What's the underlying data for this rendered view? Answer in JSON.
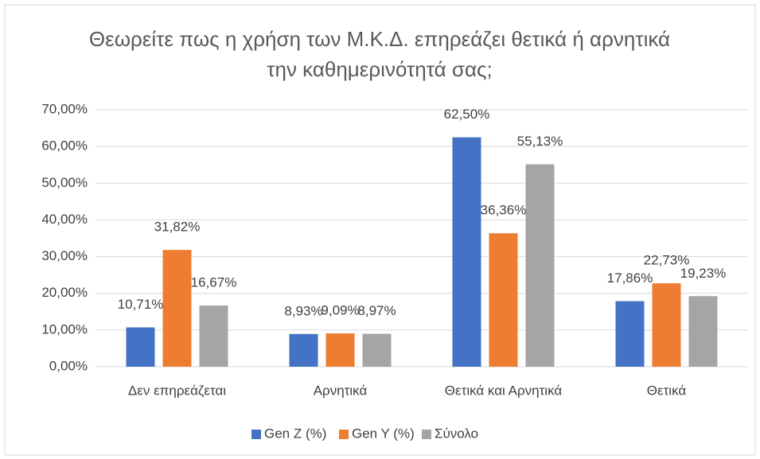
{
  "chart_data": {
    "type": "bar",
    "title": "Θεωρείτε πως η χρήση των Μ.Κ.Δ. επηρεάζει θετικά ή αρνητικά την καθημερινότητά σας;",
    "categories": [
      "Δεν επηρεάζεται",
      "Αρνητικά",
      "Θετικά και Αρνητικά",
      "Θετικά"
    ],
    "series": [
      {
        "name": "Gen Z (%)",
        "color": "#4472c4",
        "values": [
          10.71,
          8.93,
          62.5,
          17.86
        ],
        "value_labels": [
          "10,71%",
          "8,93%",
          "62,50%",
          "17,86%"
        ]
      },
      {
        "name": "Gen Y (%)",
        "color": "#ed7d31",
        "values": [
          31.82,
          9.09,
          36.36,
          22.73
        ],
        "value_labels": [
          "31,82%",
          "9,09%",
          "36,36%",
          "22,73%"
        ]
      },
      {
        "name": "Σύνολο",
        "color": "#a5a5a5",
        "values": [
          16.67,
          8.97,
          55.13,
          19.23
        ],
        "value_labels": [
          "16,67%",
          "8,97%",
          "55,13%",
          "19,23%"
        ]
      }
    ],
    "ylim": [
      0,
      70
    ],
    "yticks": [
      {
        "value": 0,
        "label": "0,00%"
      },
      {
        "value": 10,
        "label": "10,00%"
      },
      {
        "value": 20,
        "label": "20,00%"
      },
      {
        "value": 30,
        "label": "30,00%"
      },
      {
        "value": 40,
        "label": "40,00%"
      },
      {
        "value": 50,
        "label": "50,00%"
      },
      {
        "value": 60,
        "label": "60,00%"
      },
      {
        "value": 70,
        "label": "70,00%"
      }
    ],
    "grid": true,
    "legend": "bottom"
  }
}
